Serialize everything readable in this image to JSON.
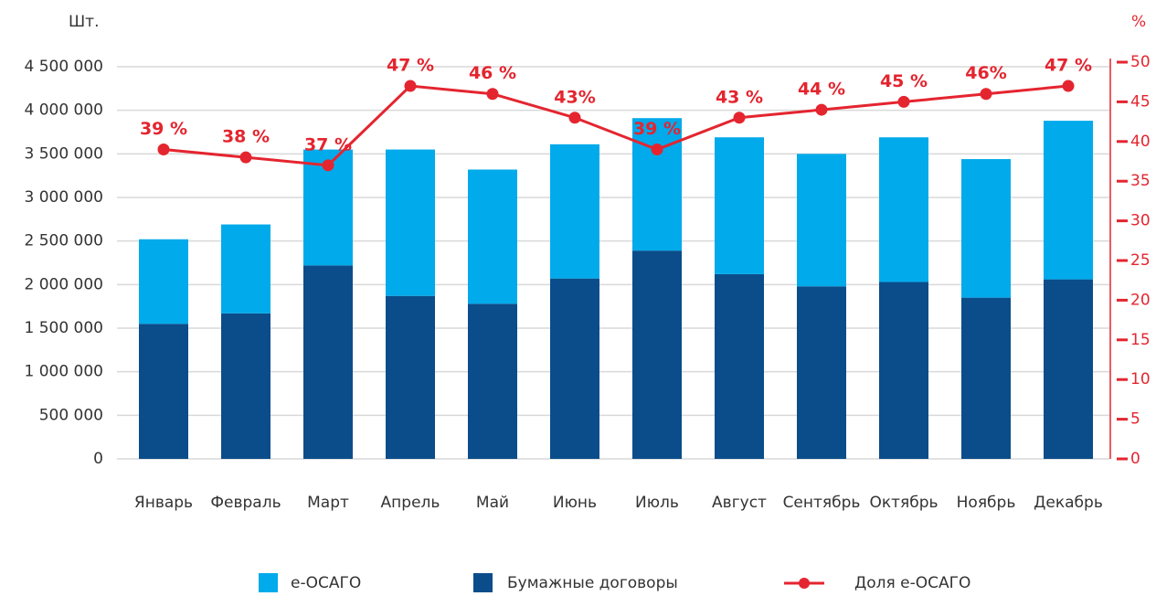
{
  "chart_data": {
    "type": "bar",
    "ylabel": "Шт.",
    "y2label": "%",
    "categories": [
      "Январь",
      "Февраль",
      "Март",
      "Апрель",
      "Май",
      "Июнь",
      "Июль",
      "Август",
      "Сентябрь",
      "Октябрь",
      "Ноябрь",
      "Декабрь"
    ],
    "stacked": true,
    "series": [
      {
        "name": "e-ОСАГО",
        "color": "#00aaeb",
        "values": [
          970000,
          1020000,
          1330000,
          1680000,
          1540000,
          1540000,
          1520000,
          1570000,
          1520000,
          1660000,
          1590000,
          1820000
        ]
      },
      {
        "name": "Бумажные договоры",
        "color": "#0a4d8a",
        "values": [
          1550000,
          1670000,
          2220000,
          1870000,
          1780000,
          2070000,
          2390000,
          2120000,
          1980000,
          2030000,
          1850000,
          2060000
        ]
      },
      {
        "name": "Доля e-ОСАГО",
        "color": "#e4252f",
        "type": "line",
        "axis": "y2",
        "values": [
          39,
          38,
          37,
          47,
          46,
          43,
          39,
          43,
          44,
          45,
          46,
          47
        ],
        "value_labels": [
          "39 %",
          "38 %",
          "37 %",
          "47 %",
          "46  %",
          "43%",
          "39 %",
          "43 %",
          "44 %",
          "45 %",
          "46%",
          "47 %"
        ]
      }
    ],
    "ylim": [
      0,
      4500000
    ],
    "yticks": [
      0,
      {
        "value": 500000,
        "label": "500 000"
      },
      {
        "value": 1000000,
        "label": "1 000 000"
      },
      {
        "value": 1500000,
        "label": "1 500 000"
      },
      {
        "value": 2000000,
        "label": "2 000 000"
      },
      {
        "value": 2500000,
        "label": "2 500 000"
      },
      {
        "value": 3000000,
        "label": "3 000 000"
      },
      {
        "value": 3500000,
        "label": "3 500 000"
      },
      {
        "value": 4000000,
        "label": "4 000 000"
      },
      {
        "value": 4500000,
        "label": "4 500 000"
      }
    ],
    "y2lim": [
      0,
      50
    ],
    "y2ticks": [
      0,
      5,
      10,
      15,
      20,
      25,
      30,
      35,
      40,
      45,
      50
    ],
    "grid": true,
    "legend": "bottom"
  }
}
